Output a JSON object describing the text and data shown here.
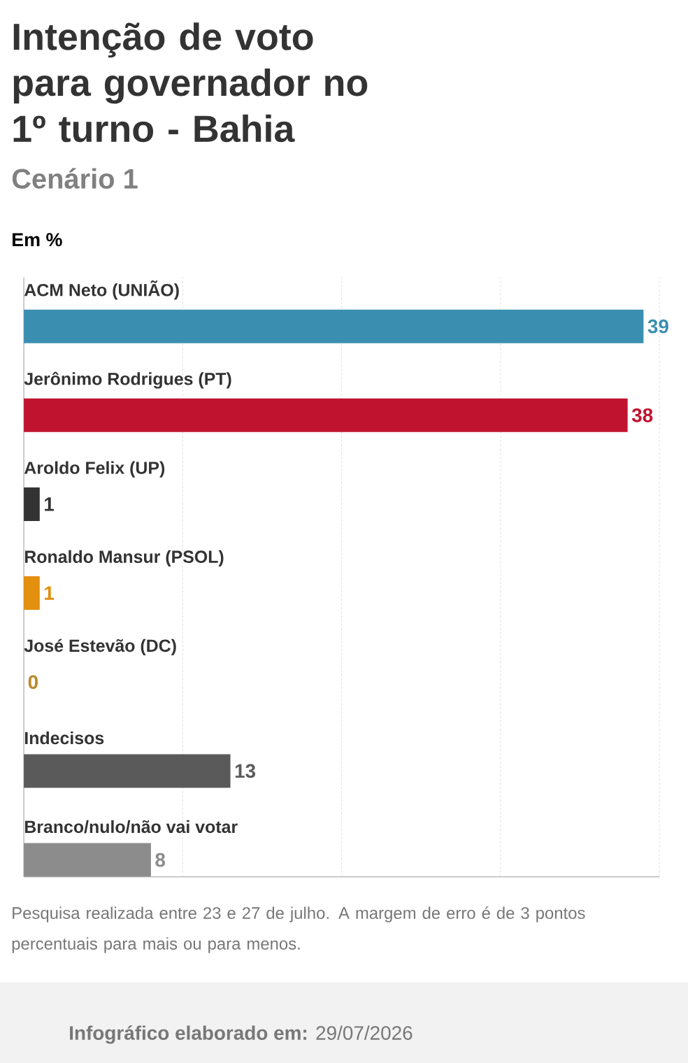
{
  "chart_data": {
    "type": "bar",
    "orientation": "horizontal",
    "title": "Intenção de voto para governador no 1º turno - Bahia",
    "subtitle": "Cenário 1",
    "categories": [
      "ACM Neto (UNIÃO)",
      "Jerônimo Rodrigues (PT)",
      "Aroldo Felix (UP)",
      "Ronaldo Mansur (PSOL)",
      "José Estevão (DC)",
      "Indecisos",
      "Branco/nulo/não vai votar"
    ],
    "values": [
      39,
      38,
      1,
      1,
      0,
      13,
      8
    ],
    "colors": [
      "#3a8fb0",
      "#c0132f",
      "#333333",
      "#e38f0f",
      "#b8892a",
      "#5a5a5a",
      "#8c8c8c"
    ],
    "xlim": [
      0,
      40
    ],
    "xticks": [
      {
        "value": 10,
        "label": null
      },
      {
        "value": 20,
        "label": null
      },
      {
        "value": 30,
        "label": null
      },
      {
        "value": 40,
        "label": null
      }
    ],
    "tick_labels": "y",
    "grid": "x",
    "data_labels": true,
    "annotations": [
      "Em %",
      "Pesquisa realizada entre 23 e 27 de julho. A margem de erro é de 3 pontos percentuais para mais ou para menos.",
      "**Infográfico elaborado em:** 29/07/2026"
    ]
  }
}
